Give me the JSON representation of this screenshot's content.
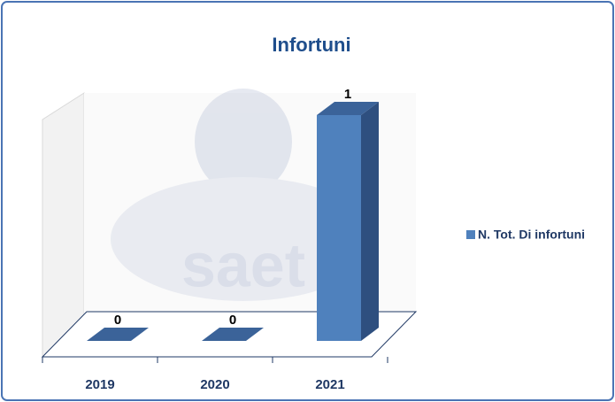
{
  "chart_data": {
    "type": "bar3d",
    "title": "Infortuni",
    "categories": [
      "2019",
      "2020",
      "2021"
    ],
    "series": [
      {
        "name": "N. Tot. Di infortuni",
        "color": "#4f81bd",
        "values": [
          0,
          0,
          1
        ]
      }
    ],
    "legend": "right"
  }
}
